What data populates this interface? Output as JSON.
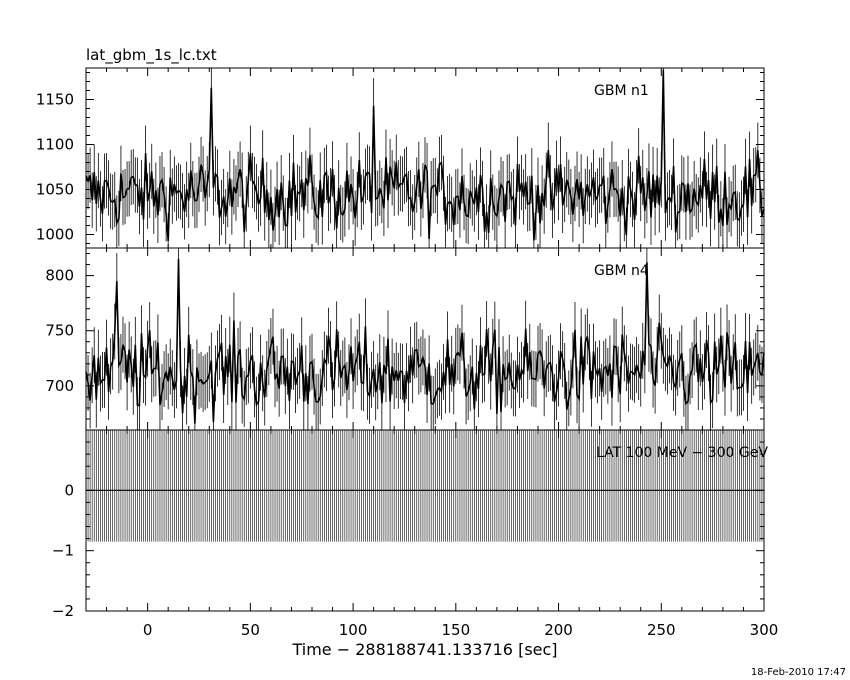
{
  "file_title": "lat_gbm_1s_lc.txt",
  "xlabel": "Time − 288188741.133716 [sec]",
  "timestamp": "18-Feb-2010 17:47",
  "chart_data": [
    {
      "type": "line",
      "panel": "top",
      "series_label": "GBM n1",
      "xlim": [
        -30,
        300
      ],
      "ylim": [
        985,
        1185
      ],
      "yticks": [
        1000,
        1050,
        1100,
        1150
      ],
      "x_start": -30,
      "x_end": 300,
      "x_step": 1,
      "mean": 1045,
      "spread": 28,
      "peaks": [
        {
          "x": 251,
          "y": 1183
        },
        {
          "x": 31,
          "y": 1163
        },
        {
          "x": 110,
          "y": 1143
        }
      ]
    },
    {
      "type": "line",
      "panel": "middle",
      "series_label": "GBM n4",
      "xlim": [
        -30,
        300
      ],
      "ylim": [
        660,
        825
      ],
      "yticks": [
        700,
        750,
        800
      ],
      "x_start": -30,
      "x_end": 300,
      "x_step": 1,
      "mean": 712,
      "spread": 26,
      "peaks": [
        {
          "x": 15,
          "y": 815
        },
        {
          "x": -15,
          "y": 795
        },
        {
          "x": 243,
          "y": 812
        }
      ]
    },
    {
      "type": "line",
      "panel": "bottom",
      "series_label": "LAT 100 MeV − 300 GeV",
      "xlim": [
        -30,
        300
      ],
      "ylim": [
        -2,
        1
      ],
      "yticks": [
        -2,
        -1,
        0
      ],
      "value": 0,
      "error_range": [
        -0.85,
        1
      ],
      "x_start": -30,
      "x_end": 300,
      "x_step": 1
    }
  ],
  "xticks": [
    0,
    50,
    100,
    150,
    200,
    250,
    300
  ]
}
